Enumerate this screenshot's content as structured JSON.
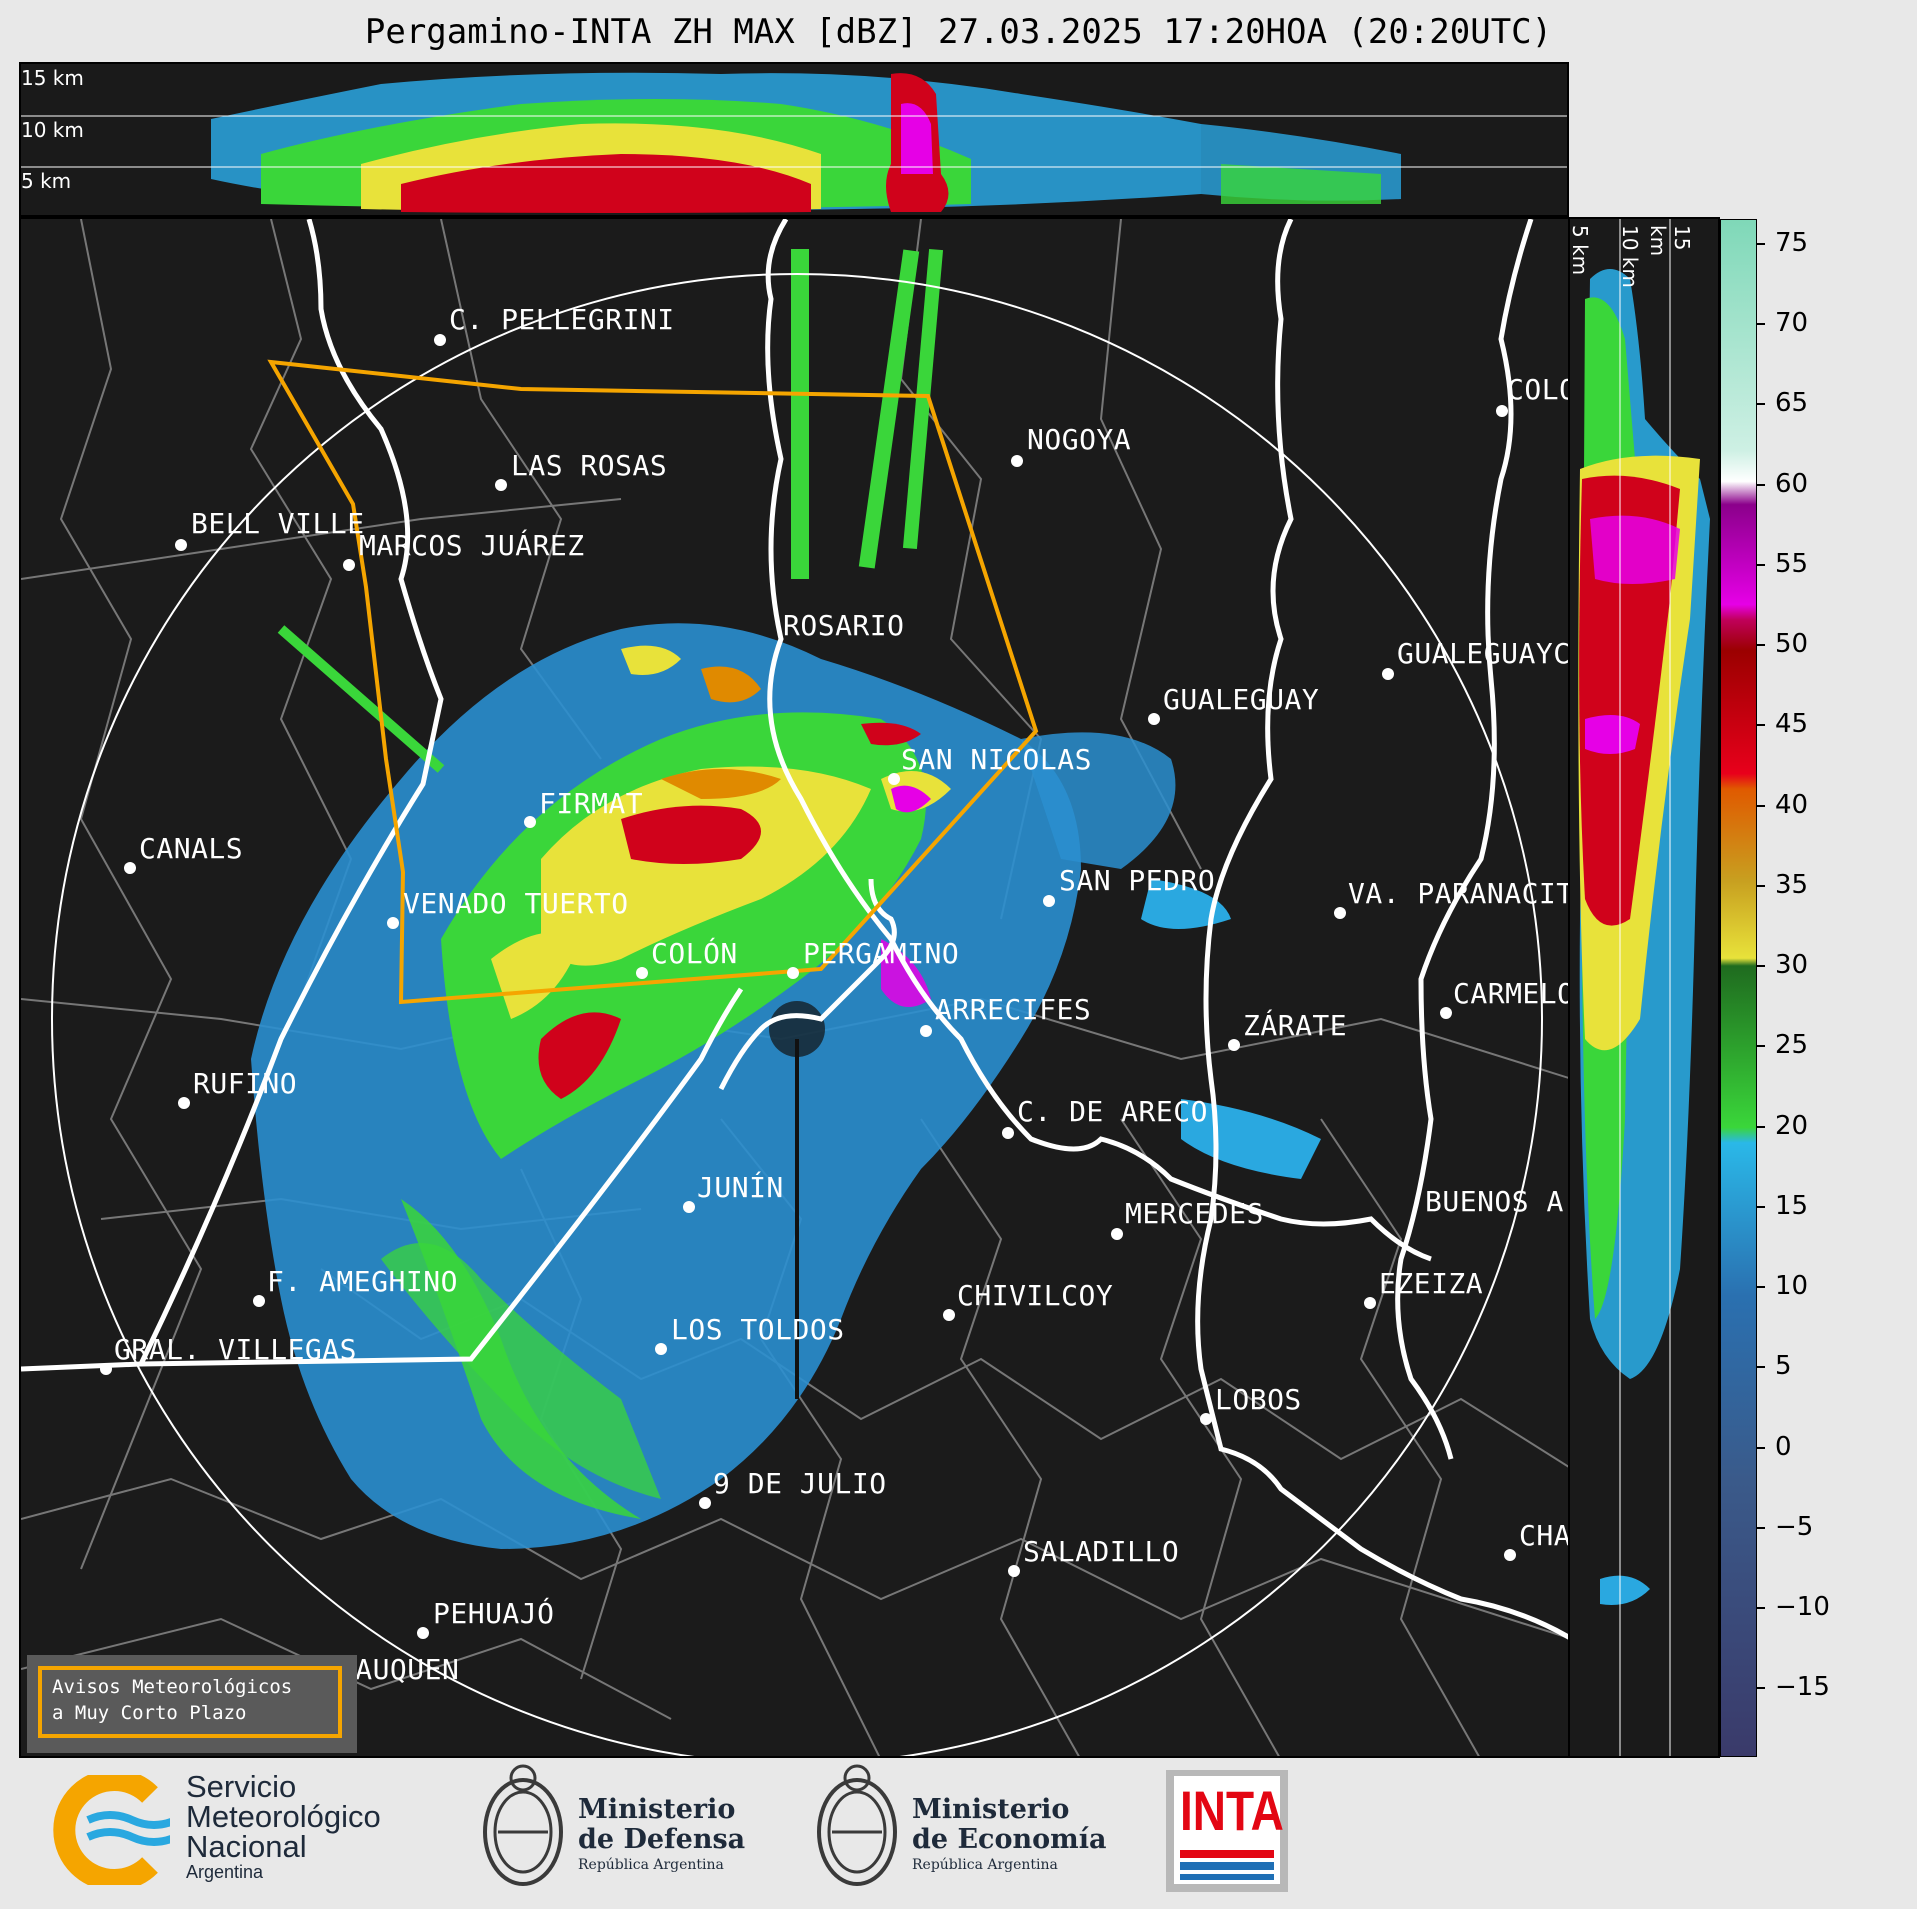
{
  "title": "Pergamino-INTA ZH MAX [dBZ] 27.03.2025 17:20HOA (20:20UTC)",
  "top_panel": {
    "altitude_labels": [
      "15 km",
      "10 km",
      "5 km"
    ]
  },
  "side_panel": {
    "altitude_labels": [
      "5 km",
      "10 km",
      "15 km"
    ]
  },
  "colorbar": {
    "unit": "dBZ",
    "ticks": [
      "75",
      "70",
      "65",
      "60",
      "55",
      "50",
      "45",
      "40",
      "35",
      "30",
      "25",
      "20",
      "15",
      "10",
      "5",
      "0",
      "−5",
      "−10",
      "−15"
    ],
    "colors": {
      "cyan_pale": "#7fd8b8",
      "white": "#ffffff",
      "purple": "#8b008b",
      "magenta": "#e600e6",
      "red": "#d0021b",
      "dark_red": "#9b0000",
      "orange": "#e08a00",
      "yellow": "#e8e23a",
      "green_dark": "#1f6b1f",
      "green": "#3ad63a",
      "blue_light": "#2aa8e0",
      "blue": "#2a70b0",
      "navy": "#3a3a6a"
    }
  },
  "cities": [
    {
      "name": "C. PELLEGRINI"
    },
    {
      "name": "LAS ROSAS"
    },
    {
      "name": "NOGOYA"
    },
    {
      "name": "BELL VILLE"
    },
    {
      "name": "MARCOS JUÁREZ"
    },
    {
      "name": "ROSARIO"
    },
    {
      "name": "GUALEGUAYC"
    },
    {
      "name": "GUALEGUAY"
    },
    {
      "name": "COLO"
    },
    {
      "name": "SAN NICOLAS"
    },
    {
      "name": "FIRMAT"
    },
    {
      "name": "CANALS"
    },
    {
      "name": "SAN PEDRO"
    },
    {
      "name": "VA. PARANACIT"
    },
    {
      "name": "VENADO TUERTO"
    },
    {
      "name": "COLÓN"
    },
    {
      "name": "PERGAMINO"
    },
    {
      "name": "CARMELO"
    },
    {
      "name": "ARRECIFES"
    },
    {
      "name": "ZÁRATE"
    },
    {
      "name": "RUFINO"
    },
    {
      "name": "C. DE ARECO"
    },
    {
      "name": "JUNÍN"
    },
    {
      "name": "MERCEDES"
    },
    {
      "name": "BUENOS A"
    },
    {
      "name": "F. AMEGHINO"
    },
    {
      "name": "CHIVILCOY"
    },
    {
      "name": "EZEIZA"
    },
    {
      "name": "LOS TOLDOS"
    },
    {
      "name": "GRAL. VILLEGAS"
    },
    {
      "name": "LOBOS"
    },
    {
      "name": "9 DE JULIO"
    },
    {
      "name": "CHA"
    },
    {
      "name": "SALADILLO"
    },
    {
      "name": "PEHUAJÓ"
    },
    {
      "name": "TRENQUE LAUQUEN"
    }
  ],
  "avisos": {
    "line1": "Avisos Meteorológicos",
    "line2": "a Muy Corto Plazo"
  },
  "logos": {
    "smn": {
      "line1": "Servicio",
      "line2": "Meteorológico",
      "line3": "Nacional",
      "line4": "Argentina"
    },
    "defensa": {
      "line1": "Ministerio",
      "line2": "de Defensa",
      "line3": "República Argentina"
    },
    "economia": {
      "line1": "Ministerio",
      "line2": "de Economía",
      "line3": "República Argentina"
    },
    "inta": {
      "text": "INTA"
    }
  }
}
